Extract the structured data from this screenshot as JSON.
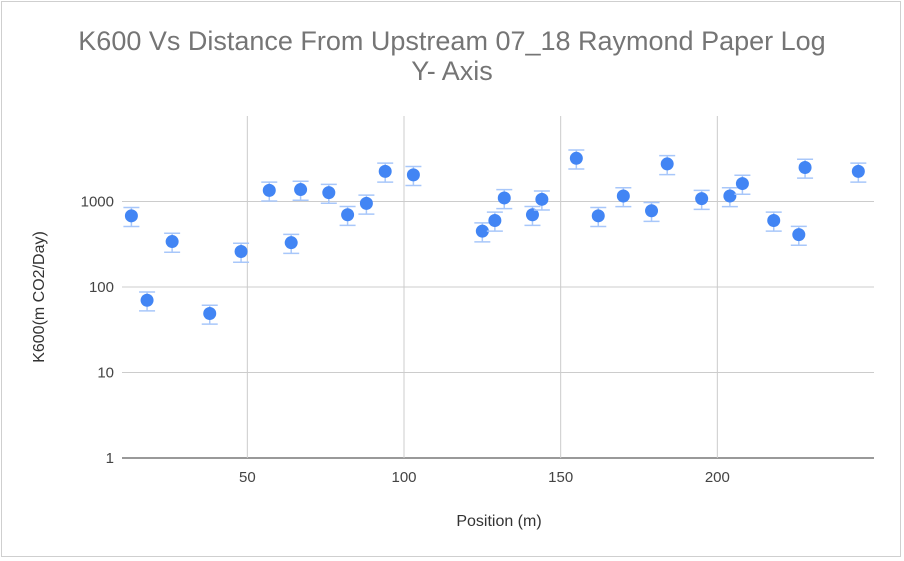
{
  "chart_data": {
    "type": "scatter",
    "title_line1": "K600 Vs Distance From Upstream 07_18 Raymond Paper Log",
    "title_line2": "Y- Axis",
    "xlabel": "Position (m)",
    "ylabel": "K600(m CO2/Day)",
    "y_scale": "log",
    "xlim": [
      10,
      250
    ],
    "ylim": [
      1,
      10000
    ],
    "x_ticks": [
      50,
      100,
      150,
      200
    ],
    "x_tick_labels": [
      "50",
      "100",
      "150",
      "200"
    ],
    "y_ticks": [
      1,
      10,
      100,
      1000
    ],
    "y_tick_labels": [
      "1",
      "10",
      "100",
      "1000"
    ],
    "grid": true,
    "marker_color": "#4285f4",
    "error_bar_color": "#a8c7fa",
    "error_fraction": 0.25,
    "points": [
      {
        "x": 13,
        "y": 680
      },
      {
        "x": 18,
        "y": 70
      },
      {
        "x": 26,
        "y": 340
      },
      {
        "x": 38,
        "y": 49
      },
      {
        "x": 48,
        "y": 260
      },
      {
        "x": 57,
        "y": 1350
      },
      {
        "x": 64,
        "y": 330
      },
      {
        "x": 67,
        "y": 1380
      },
      {
        "x": 76,
        "y": 1270
      },
      {
        "x": 82,
        "y": 700
      },
      {
        "x": 88,
        "y": 950
      },
      {
        "x": 94,
        "y": 2250
      },
      {
        "x": 103,
        "y": 2050
      },
      {
        "x": 125,
        "y": 450
      },
      {
        "x": 129,
        "y": 600
      },
      {
        "x": 132,
        "y": 1100
      },
      {
        "x": 141,
        "y": 700
      },
      {
        "x": 144,
        "y": 1060
      },
      {
        "x": 155,
        "y": 3200
      },
      {
        "x": 162,
        "y": 680
      },
      {
        "x": 170,
        "y": 1160
      },
      {
        "x": 179,
        "y": 780
      },
      {
        "x": 184,
        "y": 2750
      },
      {
        "x": 195,
        "y": 1080
      },
      {
        "x": 204,
        "y": 1160
      },
      {
        "x": 208,
        "y": 1620
      },
      {
        "x": 218,
        "y": 600
      },
      {
        "x": 226,
        "y": 410
      },
      {
        "x": 228,
        "y": 2500
      },
      {
        "x": 245,
        "y": 2250
      }
    ]
  }
}
